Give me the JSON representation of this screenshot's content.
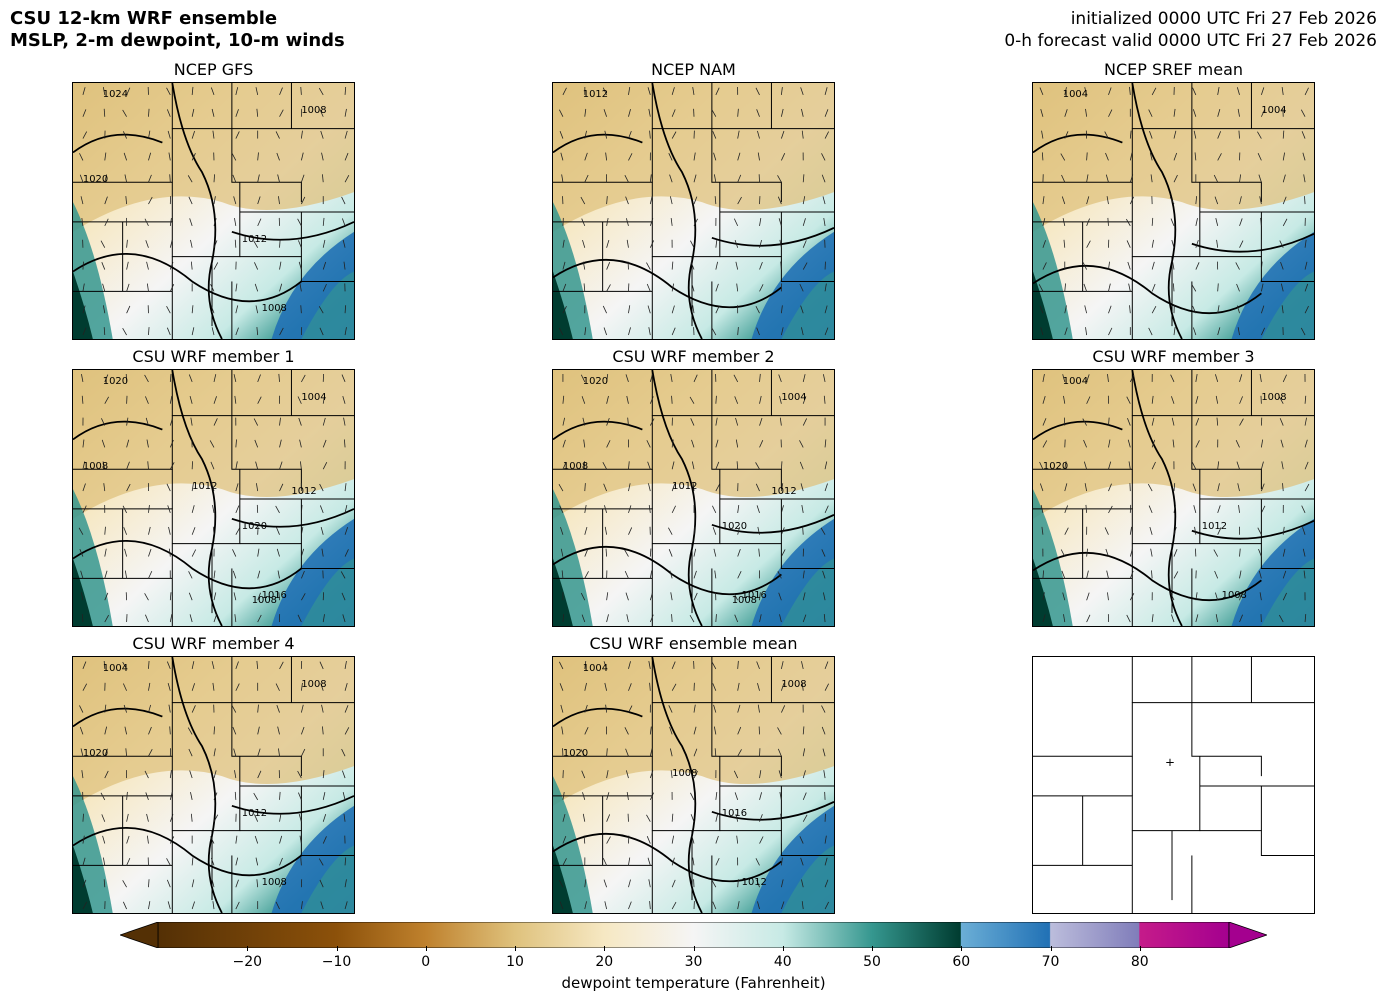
{
  "title": {
    "line1": "CSU 12-km WRF ensemble",
    "line2": "MSLP, 2-m dewpoint, 10-m winds"
  },
  "forecast": {
    "initialized": "initialized 0000 UTC Fri 27 Feb 2026",
    "valid": "0-h forecast valid 0000 UTC Fri 27 Feb 2026"
  },
  "panels": [
    {
      "title": "NCEP GFS",
      "isobar_labels": [
        "1024",
        "1008",
        "1020",
        "1012",
        "1008"
      ]
    },
    {
      "title": "NCEP NAM",
      "isobar_labels": [
        "1012"
      ]
    },
    {
      "title": "NCEP SREF mean",
      "isobar_labels": [
        "1004",
        "1004"
      ]
    },
    {
      "title": "CSU WRF member 1",
      "isobar_labels": [
        "1020",
        "1004",
        "1008",
        "1020",
        "1016",
        "1012",
        "1012",
        "1008"
      ]
    },
    {
      "title": "CSU WRF member 2",
      "isobar_labels": [
        "1020",
        "1004",
        "1008",
        "1020",
        "1016",
        "1012",
        "1012",
        "1008"
      ]
    },
    {
      "title": "CSU WRF member 3",
      "isobar_labels": [
        "1004",
        "1008",
        "1020",
        "1012",
        "1008"
      ]
    },
    {
      "title": "CSU WRF member 4",
      "isobar_labels": [
        "1004",
        "1008",
        "1020",
        "1012",
        "1008"
      ]
    },
    {
      "title": "CSU WRF ensemble mean",
      "isobar_labels": [
        "1004",
        "1008",
        "1020",
        "1016",
        "1012",
        "1008"
      ]
    },
    {
      "title": "",
      "isobar_labels": []
    }
  ],
  "colorbar": {
    "label": "dewpoint temperature (Fahrenheit)",
    "ticks": [
      "−20",
      "−10",
      "0",
      "10",
      "20",
      "30",
      "40",
      "50",
      "60",
      "70",
      "80"
    ],
    "tick_values": [
      -20,
      -10,
      0,
      10,
      20,
      30,
      40,
      50,
      60,
      70,
      80
    ],
    "min": -30,
    "max": 90,
    "extend": "both",
    "colors": {
      "very_dry": "#543005",
      "dry": "#bf812d",
      "tan": "#dfc27d",
      "neutral": "#f6e8c3",
      "white": "#f5f5f5",
      "teal_light": "#c7eae5",
      "teal": "#35978f",
      "teal_dark": "#003c30",
      "blue": "#2171b5",
      "purple": "#807dba",
      "magenta": "#a4008f"
    }
  },
  "locator_marker": "plus-icon"
}
